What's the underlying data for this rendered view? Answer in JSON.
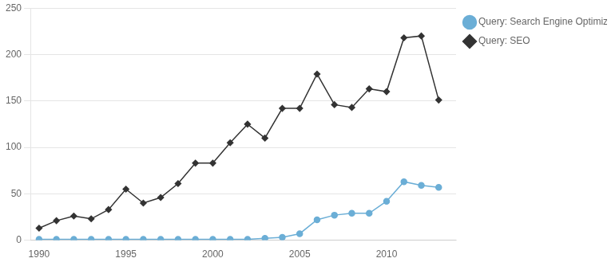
{
  "chart_data": {
    "type": "line",
    "x": [
      1990,
      1991,
      1992,
      1993,
      1994,
      1995,
      1996,
      1997,
      1998,
      1999,
      2000,
      2001,
      2002,
      2003,
      2004,
      2005,
      2006,
      2007,
      2008,
      2009,
      2010,
      2011,
      2012,
      2013
    ],
    "series": [
      {
        "name": "Query: SEO",
        "color": "#333333",
        "marker": "diamond",
        "values": [
          13,
          21,
          26,
          23,
          33,
          55,
          40,
          46,
          61,
          83,
          83,
          105,
          125,
          110,
          142,
          142,
          179,
          146,
          143,
          163,
          160,
          218,
          220,
          151
        ]
      },
      {
        "name": "Query: Search Engine Optimization",
        "color": "#6baed6",
        "marker": "circle",
        "values": [
          1,
          1,
          1,
          1,
          1,
          1,
          1,
          1,
          1,
          1,
          1,
          1,
          1,
          2,
          3,
          7,
          22,
          27,
          29,
          29,
          42,
          63,
          59,
          57
        ]
      }
    ],
    "xlim": [
      1989.5,
      2014.0
    ],
    "xticks": [
      1990,
      1995,
      2000,
      2005,
      2010
    ],
    "ylim": [
      0,
      250
    ],
    "yticks": [
      0,
      50,
      100,
      150,
      200,
      250
    ],
    "grid": "y",
    "legend": "right"
  }
}
